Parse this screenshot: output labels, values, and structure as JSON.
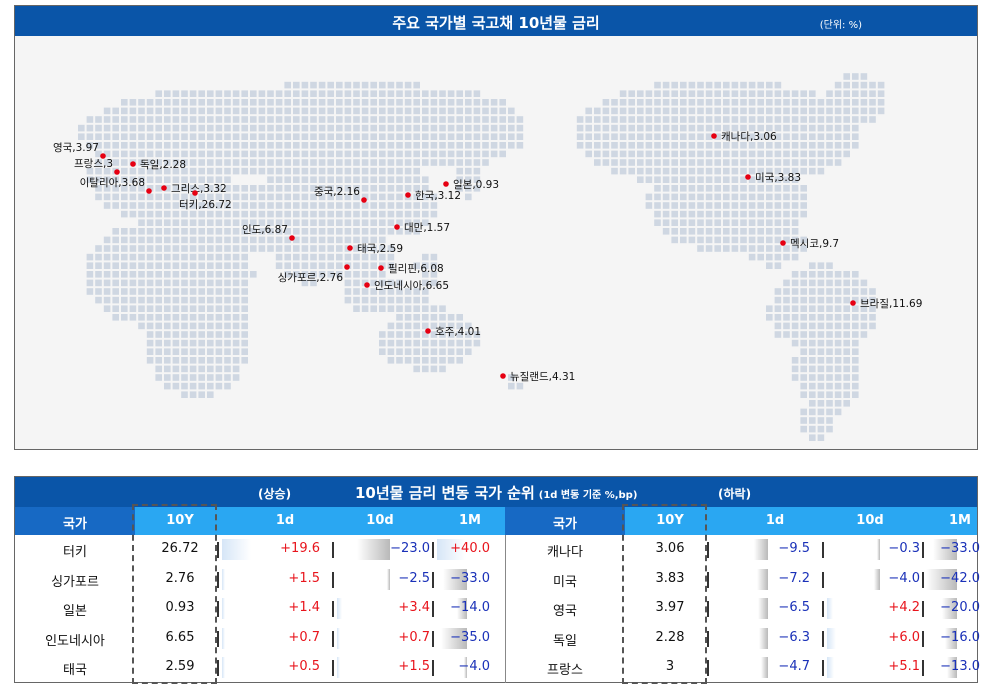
{
  "map": {
    "title": "주요 국가별 국고채 10년물 금리",
    "unit": "(단위: %)"
  },
  "chart_data": [
    {
      "type": "scatter",
      "title": "주요 국가별 국고채 10년물 금리",
      "unit": "%",
      "points": [
        {
          "label": "영국",
          "value": 3.97
        },
        {
          "label": "독일",
          "value": 2.28
        },
        {
          "label": "프랑스",
          "value": 3
        },
        {
          "label": "그리스",
          "value": 3.32
        },
        {
          "label": "이탈리아",
          "value": 3.68
        },
        {
          "label": "터키",
          "value": 26.72
        },
        {
          "label": "중국",
          "value": 2.16
        },
        {
          "label": "일본",
          "value": 0.93
        },
        {
          "label": "한국",
          "value": 3.12
        },
        {
          "label": "대만",
          "value": 1.57
        },
        {
          "label": "인도",
          "value": 6.87
        },
        {
          "label": "태국",
          "value": 2.59
        },
        {
          "label": "필리핀",
          "value": 6.08
        },
        {
          "label": "싱가포르",
          "value": 2.76
        },
        {
          "label": "인도네시아",
          "value": 6.65
        },
        {
          "label": "호주",
          "value": 4.01
        },
        {
          "label": "뉴질랜드",
          "value": 4.31
        },
        {
          "label": "캐나다",
          "value": 3.06
        },
        {
          "label": "미국",
          "value": 3.83
        },
        {
          "label": "멕시코",
          "value": 9.7
        },
        {
          "label": "브라질",
          "value": 11.69
        }
      ]
    },
    {
      "type": "table",
      "title": "10년물 금리 변동 국가 순위",
      "subtitle": "(1d 변동 기준 %,bp)",
      "up_label": "(상승)",
      "down_label": "(하락)",
      "columns": [
        "국가",
        "10Y",
        "1d",
        "10d",
        "1M"
      ],
      "rising": [
        {
          "country": "터키",
          "y10": "26.72",
          "d1": 19.6,
          "d10": -23.0,
          "m1": 40.0
        },
        {
          "country": "싱가포르",
          "y10": "2.76",
          "d1": 1.5,
          "d10": -2.5,
          "m1": -33.0
        },
        {
          "country": "일본",
          "y10": "0.93",
          "d1": 1.4,
          "d10": 3.4,
          "m1": -14.0
        },
        {
          "country": "인도네시아",
          "y10": "6.65",
          "d1": 0.7,
          "d10": 0.7,
          "m1": -35.0
        },
        {
          "country": "태국",
          "y10": "2.59",
          "d1": 0.5,
          "d10": 1.5,
          "m1": -4.0
        }
      ],
      "falling": [
        {
          "country": "캐나다",
          "y10": "3.06",
          "d1": -9.5,
          "d10": -0.3,
          "m1": -33.0
        },
        {
          "country": "미국",
          "y10": "3.83",
          "d1": -7.2,
          "d10": -4.0,
          "m1": -42.0
        },
        {
          "country": "영국",
          "y10": "3.97",
          "d1": -6.5,
          "d10": 4.2,
          "m1": -20.0
        },
        {
          "country": "독일",
          "y10": "2.28",
          "d1": -6.3,
          "d10": 6.0,
          "m1": -16.0
        },
        {
          "country": "프랑스",
          "y10": "3",
          "d1": -4.7,
          "d10": 5.1,
          "m1": -13.0
        }
      ]
    }
  ],
  "colors": {
    "header_blue": "#0a55a8",
    "column_header": "#2aa7f2",
    "column_header_dark": "#1769c4",
    "positive": "#e8141c",
    "negative": "#1a31b8",
    "marker": "#e60012",
    "map_land": "#cfd7e2"
  }
}
